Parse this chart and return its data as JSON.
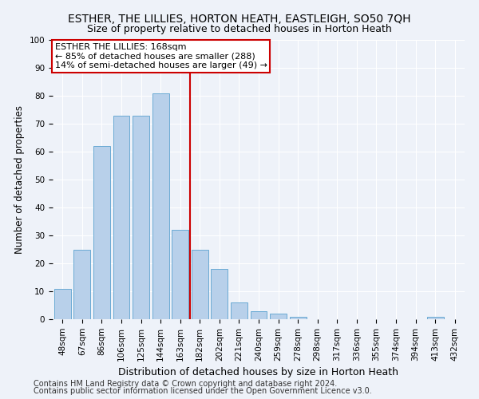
{
  "title": "ESTHER, THE LILLIES, HORTON HEATH, EASTLEIGH, SO50 7QH",
  "subtitle": "Size of property relative to detached houses in Horton Heath",
  "xlabel": "Distribution of detached houses by size in Horton Heath",
  "ylabel": "Number of detached properties",
  "categories": [
    "48sqm",
    "67sqm",
    "86sqm",
    "106sqm",
    "125sqm",
    "144sqm",
    "163sqm",
    "182sqm",
    "202sqm",
    "221sqm",
    "240sqm",
    "259sqm",
    "278sqm",
    "298sqm",
    "317sqm",
    "336sqm",
    "355sqm",
    "374sqm",
    "394sqm",
    "413sqm",
    "432sqm"
  ],
  "values": [
    11,
    25,
    62,
    73,
    73,
    81,
    32,
    25,
    18,
    6,
    3,
    2,
    1,
    0,
    0,
    0,
    0,
    0,
    0,
    1,
    0
  ],
  "bar_color": "#b8d0ea",
  "bar_edge_color": "#6aaad4",
  "vline_color": "#cc0000",
  "annotation_text": "ESTHER THE LILLIES: 168sqm\n← 85% of detached houses are smaller (288)\n14% of semi-detached houses are larger (49) →",
  "annotation_box_color": "#ffffff",
  "annotation_box_edge": "#cc0000",
  "footnote1": "Contains HM Land Registry data © Crown copyright and database right 2024.",
  "footnote2": "Contains public sector information licensed under the Open Government Licence v3.0.",
  "ylim": [
    0,
    100
  ],
  "title_fontsize": 10,
  "subtitle_fontsize": 9,
  "xlabel_fontsize": 9,
  "ylabel_fontsize": 8.5,
  "tick_fontsize": 7.5,
  "annotation_fontsize": 8,
  "footnote_fontsize": 7,
  "background_color": "#eef2f9"
}
